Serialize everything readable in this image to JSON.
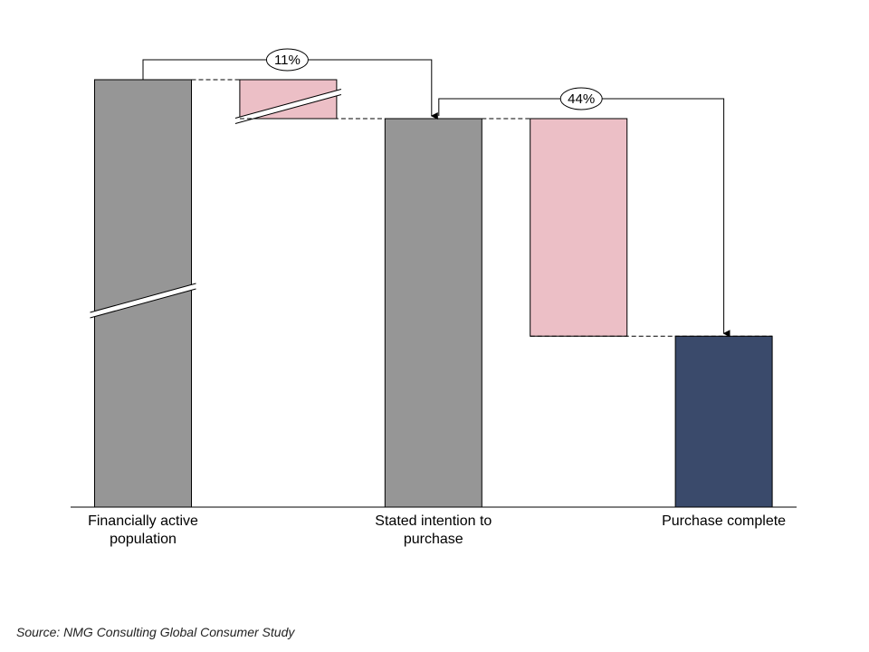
{
  "chart_data": {
    "type": "waterfall",
    "categories": [
      "Financially active population",
      null,
      "Stated intention to purchase",
      null,
      "Purchase complete"
    ],
    "values": [
      909,
      -809,
      100,
      -56,
      44
    ],
    "colors": [
      "#969696",
      "#ecbfc6",
      "#969696",
      "#ecbfc6",
      "#3a4a6b"
    ],
    "axis_break": true,
    "rates": [
      11,
      44
    ],
    "rate_labels": [
      "11%",
      "44%"
    ],
    "source": "Source: NMG Consulting Global Consumer Study"
  }
}
